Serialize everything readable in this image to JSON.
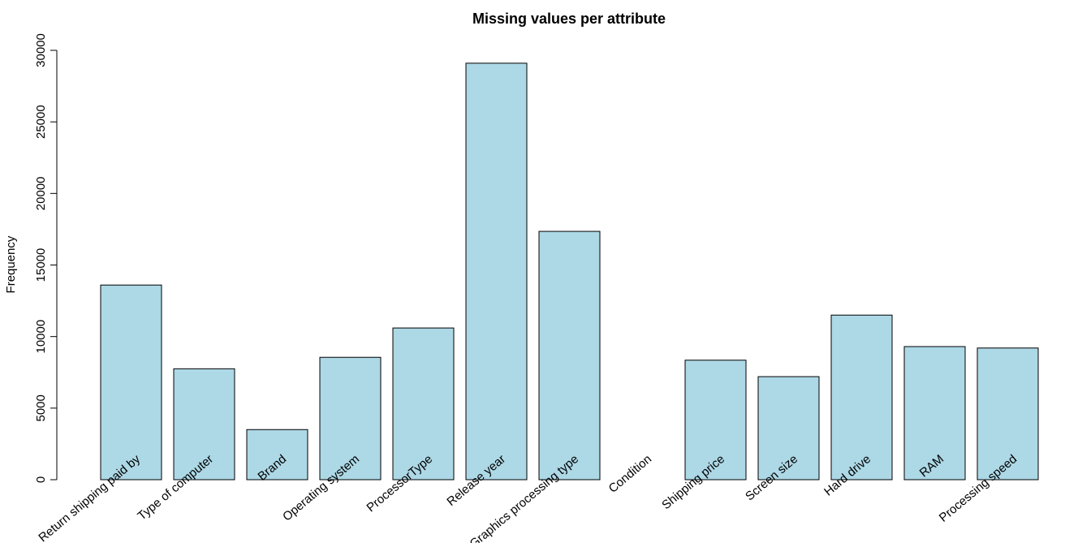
{
  "chart_data": {
    "type": "bar",
    "title": "Missing values per attribute",
    "xlabel": "",
    "ylabel": "Frequency",
    "ylim": [
      0,
      30000
    ],
    "yticks": [
      0,
      5000,
      10000,
      15000,
      20000,
      25000,
      30000
    ],
    "categories": [
      "Return shipping paid by",
      "Type of computer",
      "Brand",
      "Operating system",
      "ProcessorType",
      "Release year",
      "Graphics processing type",
      "Condition",
      "Shipping price",
      "Screen size",
      "Hard drive",
      "RAM",
      "Processing speed"
    ],
    "values": [
      13600,
      7750,
      3500,
      8550,
      10600,
      29100,
      17350,
      0,
      8350,
      7200,
      11500,
      9300,
      9200
    ],
    "bar_color": "#add8e6",
    "grid": false,
    "legend": "none"
  }
}
